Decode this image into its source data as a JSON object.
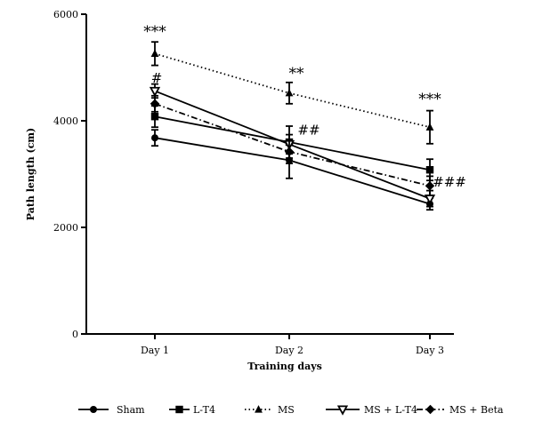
{
  "chart_data": {
    "type": "line",
    "xlabel": "Training days",
    "ylabel": "Path length (cm)",
    "categories": [
      "Day 1",
      "Day 2",
      "Day 3"
    ],
    "ylim": [
      0,
      6000
    ],
    "yticks": [
      "0",
      "2000",
      "4000",
      "6000"
    ],
    "grid": false,
    "legend_position": "bottom",
    "series": [
      {
        "name": "Sham",
        "values": [
          3680,
          3260,
          2440
        ],
        "errors": [
          150,
          340,
          110
        ],
        "line_style": "solid",
        "marker": "circle"
      },
      {
        "name": "L-T4",
        "values": [
          4080,
          3600,
          3080
        ],
        "errors": [
          200,
          300,
          200
        ],
        "line_style": "solid",
        "marker": "square"
      },
      {
        "name": "MS",
        "values": [
          5260,
          4520,
          3880
        ],
        "errors": [
          220,
          200,
          310
        ],
        "line_style": "dotted",
        "marker": "triangle-up"
      },
      {
        "name": "MS + L-T4",
        "values": [
          4560,
          3560,
          2540
        ],
        "errors": [
          130,
          180,
          150
        ],
        "line_style": "solid",
        "marker": "triangle-down-open"
      },
      {
        "name": "MS + Beta",
        "values": [
          4320,
          3420,
          2780
        ],
        "errors": [
          150,
          220,
          180
        ],
        "line_style": "dashdot",
        "marker": "diamond"
      }
    ],
    "annotations": [
      {
        "text": "***",
        "category": "Day 1",
        "y": 5580,
        "size": 17
      },
      {
        "text": "#",
        "category": "Day 1",
        "y": 4720,
        "size": 15,
        "dx": 2
      },
      {
        "text": "**",
        "category": "Day 2",
        "y": 4800,
        "size": 17,
        "dx": 8
      },
      {
        "text": "##",
        "category": "Day 2",
        "y": 3740,
        "size": 15,
        "dx": 22
      },
      {
        "text": "***",
        "category": "Day 3",
        "y": 4320,
        "size": 17
      },
      {
        "text": "###",
        "category": "Day 3",
        "y": 2770,
        "size": 15,
        "dx": 22
      }
    ]
  }
}
